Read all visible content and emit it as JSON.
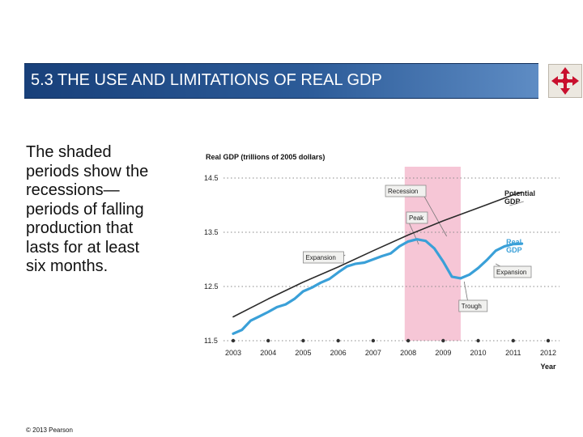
{
  "header": {
    "title": "5.3  THE USE AND LIMITATIONS OF REAL GDP",
    "nav_icon": "navigation-arrows-icon"
  },
  "description": {
    "lines": [
      "The shaded",
      "periods show the",
      "recessions—",
      "periods of falling",
      "production that",
      "lasts for at least",
      "six months."
    ]
  },
  "footer": {
    "copyright": "© 2013 Pearson"
  },
  "colors": {
    "accent": "#1f4b88",
    "recession_band": "#f6c6d6",
    "real_gdp": "#3aa0d8",
    "potential_gdp": "#2a2a2a"
  },
  "chart_data": {
    "type": "line",
    "ylabel": "Real GDP (trillions of 2005 dollars)",
    "xlabel": "Year",
    "xlim": [
      2003,
      2012
    ],
    "ylim": [
      11.5,
      14.5
    ],
    "x_ticks": [
      "2003",
      "2004",
      "2005",
      "2006",
      "2007",
      "2008",
      "2009",
      "2010",
      "2011",
      "2012"
    ],
    "y_ticks": [
      "11.5",
      "12.5",
      "13.5",
      "14.5"
    ],
    "grid": "dotted horizontal",
    "recession": {
      "label": "Recession",
      "from": 2007.9,
      "to": 2009.5
    },
    "series": [
      {
        "name": "Potential GDP",
        "color": "#2a2a2a",
        "x": [
          2003.0,
          2004.0,
          2005.0,
          2006.0,
          2007.0,
          2008.0,
          2009.0,
          2010.0,
          2011.0,
          2011.25
        ],
        "y": [
          11.94,
          12.27,
          12.58,
          12.86,
          13.16,
          13.45,
          13.71,
          13.95,
          14.19,
          14.24
        ]
      },
      {
        "name": "Real GDP",
        "color": "#3aa0d8",
        "x": [
          2003.0,
          2003.25,
          2003.5,
          2003.75,
          2004.0,
          2004.25,
          2004.5,
          2004.75,
          2005.0,
          2005.25,
          2005.5,
          2005.75,
          2006.0,
          2006.25,
          2006.5,
          2006.75,
          2007.0,
          2007.25,
          2007.5,
          2007.75,
          2008.0,
          2008.25,
          2008.5,
          2008.75,
          2009.0,
          2009.25,
          2009.5,
          2009.75,
          2010.0,
          2010.25,
          2010.5,
          2010.75,
          2011.0,
          2011.25
        ],
        "y": [
          11.63,
          11.7,
          11.87,
          11.95,
          12.03,
          12.12,
          12.17,
          12.27,
          12.41,
          12.48,
          12.57,
          12.64,
          12.76,
          12.87,
          12.92,
          12.94,
          13.0,
          13.06,
          13.11,
          13.24,
          13.33,
          13.37,
          13.34,
          13.2,
          12.96,
          12.68,
          12.65,
          12.72,
          12.84,
          12.99,
          13.16,
          13.24,
          13.28,
          13.29
        ]
      }
    ],
    "annotations": [
      {
        "text": "Recession",
        "x": 2007.9,
        "y": 14.1
      },
      {
        "text": "Peak",
        "x": 2008.2,
        "y": 13.6
      },
      {
        "text": "Expansion",
        "x": 2005.8,
        "y": 13.0
      },
      {
        "text": "Trough",
        "x": 2009.5,
        "y": 12.65
      },
      {
        "text": "Expansion",
        "x": 2011.0,
        "y": 12.9
      }
    ]
  }
}
